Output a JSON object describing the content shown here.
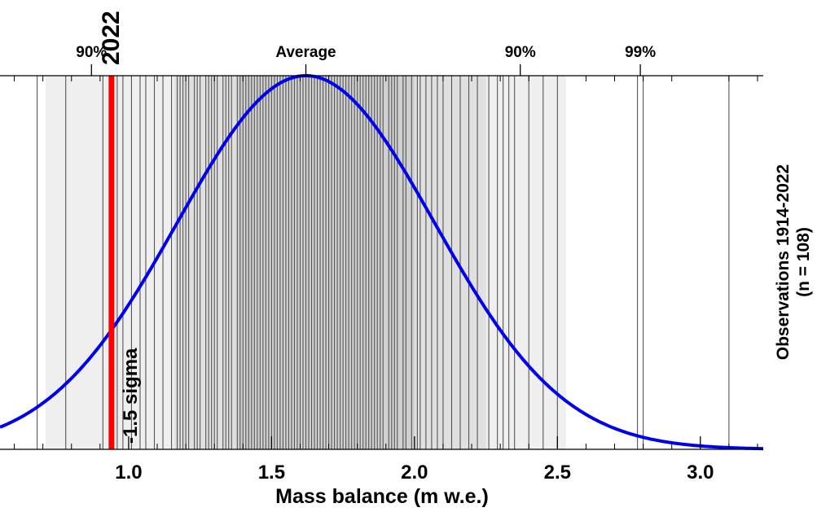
{
  "chart_data": {
    "type": "line",
    "title": "",
    "xlabel": "Mass balance (m w.e.)",
    "ylabel_right": [
      "Observations 1914-2022",
      "(n = 108)"
    ],
    "x_ticks": [
      "1.0",
      "1.5",
      "2.0",
      "2.5",
      "3.0"
    ],
    "xlim": [
      0.55,
      3.22
    ],
    "grid": false,
    "top_markers": [
      {
        "label": "90%",
        "x": 0.87
      },
      {
        "label": "Average",
        "x": 1.62
      },
      {
        "label": "90%",
        "x": 2.37
      },
      {
        "label": "99%",
        "x": 2.79
      }
    ],
    "highlight": {
      "label": "2022",
      "x": 0.94,
      "annotation": "-1.5 sigma",
      "color": "#ff0000"
    },
    "distribution": {
      "mean": 1.62,
      "sd": 0.45,
      "color": "#0000ee",
      "series_name": ""
    },
    "bands": [
      {
        "from": 0.71,
        "to": 2.53,
        "color": "#efefef"
      },
      {
        "from": 1.16,
        "to": 2.25,
        "color": "#e0e0e0"
      },
      {
        "from": 1.38,
        "to": 2.0,
        "color": "#d0d0d0"
      }
    ],
    "observations": [
      0.68,
      0.78,
      0.91,
      0.96,
      0.98,
      1.01,
      1.04,
      1.06,
      1.09,
      1.12,
      1.15,
      1.17,
      1.18,
      1.19,
      1.2,
      1.21,
      1.23,
      1.24,
      1.25,
      1.27,
      1.28,
      1.29,
      1.3,
      1.31,
      1.33,
      1.34,
      1.35,
      1.36,
      1.38,
      1.39,
      1.4,
      1.41,
      1.42,
      1.43,
      1.44,
      1.45,
      1.46,
      1.47,
      1.48,
      1.49,
      1.5,
      1.51,
      1.52,
      1.53,
      1.54,
      1.55,
      1.56,
      1.57,
      1.58,
      1.59,
      1.6,
      1.61,
      1.62,
      1.63,
      1.64,
      1.65,
      1.66,
      1.67,
      1.68,
      1.69,
      1.7,
      1.71,
      1.72,
      1.73,
      1.74,
      1.75,
      1.76,
      1.77,
      1.78,
      1.79,
      1.8,
      1.81,
      1.82,
      1.83,
      1.84,
      1.85,
      1.86,
      1.87,
      1.88,
      1.89,
      1.91,
      1.92,
      1.93,
      1.94,
      1.96,
      1.97,
      1.99,
      2.01,
      2.02,
      2.04,
      2.06,
      2.08,
      2.1,
      2.13,
      2.16,
      2.19,
      2.22,
      2.26,
      2.29,
      2.31,
      2.33,
      2.35,
      2.4,
      2.45,
      2.5,
      2.78,
      2.8,
      3.1
    ]
  }
}
